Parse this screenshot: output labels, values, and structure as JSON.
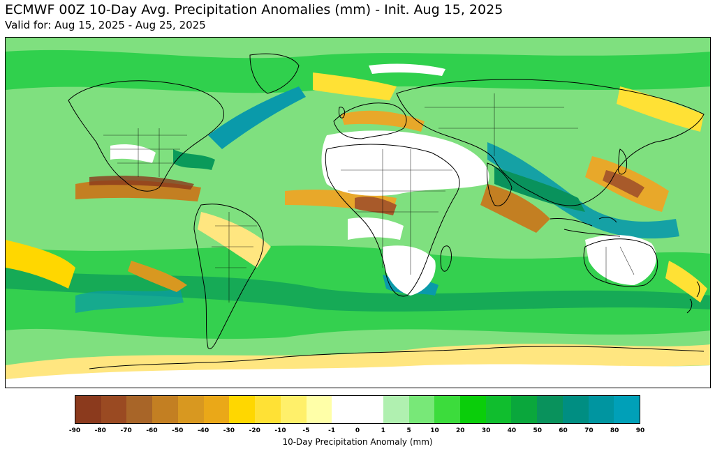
{
  "header": {
    "title": "ECMWF 00Z 10-Day Avg. Precipitation Anomalies (mm) - Init. Aug 15, 2025",
    "subtitle": "Valid for: Aug 15, 2025 - Aug 25, 2025"
  },
  "colorbar": {
    "label": "10-Day Precipitation Anomaly (mm)",
    "ticks": [
      "-90",
      "-80",
      "-70",
      "-60",
      "-50",
      "-40",
      "-30",
      "-20",
      "-10",
      "-5",
      "-1",
      "0",
      "1",
      "5",
      "10",
      "20",
      "30",
      "40",
      "50",
      "60",
      "70",
      "80",
      "90"
    ],
    "colors": [
      "#8b3a1d",
      "#9a4a22",
      "#a86528",
      "#c37f22",
      "#d89820",
      "#eaa818",
      "#ffd700",
      "#ffe135",
      "#fff06a",
      "#ffffa8",
      "#ffffff",
      "#ffffff",
      "#b0f0b0",
      "#78e878",
      "#3cdc3c",
      "#0ace0a",
      "#10be2e",
      "#0aa73c",
      "#09925c",
      "#008e82",
      "#0095a0",
      "#00a0b8"
    ]
  },
  "palette": {
    "dry_strong": "#a85a2a",
    "dry_mid": "#e8a82a",
    "dry_light": "#ffe680",
    "wet_light": "#8ae88a",
    "wet_mid": "#22cc44",
    "wet_strong": "#0a9a5a",
    "wet_max": "#0a9aaa",
    "land_outline": "#000000"
  }
}
